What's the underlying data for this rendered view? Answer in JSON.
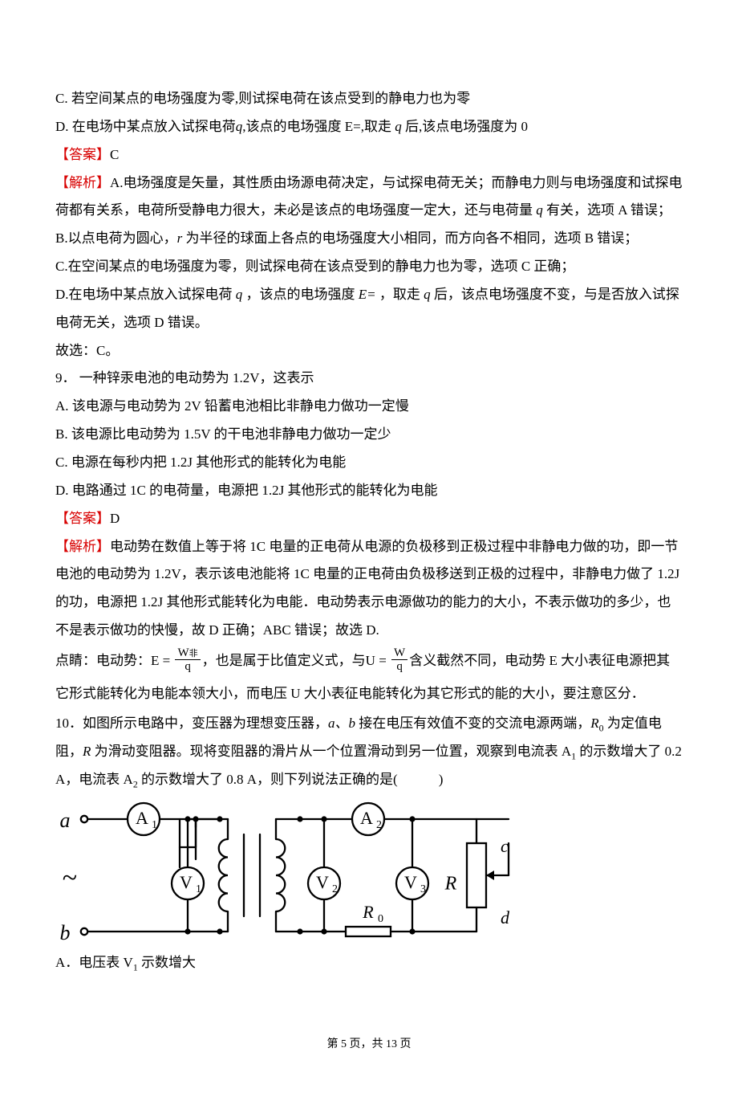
{
  "q8_tail": {
    "opt_c": "C.  若空间某点的电场强度为零,则试探电荷在该点受到的静电力也为零",
    "opt_d_pre": "D.  在电场中某点放入试探电荷",
    "opt_d_q1": "q",
    "opt_d_mid": ",该点的电场强度 E=,取走 ",
    "opt_d_q2": "q",
    "opt_d_post": " 后,该点电场强度为 0",
    "ans_label": "【答案】",
    "ans_val": "C",
    "ana_label": "【解析】",
    "ana_a_pre": "A.电场强度是矢量，其性质由场源电荷决定，与试探电荷无关；而静电力则与电场强度和试探电荷都有关系，电荷所受静电力很大，未必是该点的电场强度一定大，还与电荷量",
    "ana_a_q": " q ",
    "ana_a_post": "有关，选项 A 错误；",
    "ana_b_pre": "B.以点电荷为圆心，",
    "ana_b_r": "r ",
    "ana_b_post": "为半径的球面上各点的电场强度大小相同，而方向各不相同，选项 B 错误；",
    "ana_c": "C.在空间某点的电场强度为零，则试探电荷在该点受到的静电力也为零，选项 C 正确；",
    "ana_d_pre": "D.在电场中某点放入试探电荷 ",
    "ana_d_q1": "q ",
    "ana_d_mid1": "，该点的电场强度",
    "ana_d_E": " E= ",
    "ana_d_mid2": " ，取走",
    "ana_d_q2": " q ",
    "ana_d_post": "后，该点电场强度不变，与是否放入试探电荷无关，选项 D 错误。",
    "ana_end": "故选：C。"
  },
  "q9": {
    "stem": "9． 一种锌汞电池的电动势为 1.2V，这表示",
    "opt_a": "A.  该电源与电动势为 2V 铅蓄电池相比非静电力做功一定慢",
    "opt_b": "B.  该电源比电动势为 1.5V 的干电池非静电力做功一定少",
    "opt_c": "C.  电源在每秒内把 1.2J 其他形式的能转化为电能",
    "opt_d": "D.  电路通过 1C 的电荷量，电源把 1.2J 其他形式的能转化为电能",
    "ans_label": "【答案】",
    "ans_val": "D",
    "ana_label": "【解析】",
    "ana_1": "电动势在数值上等于将 1C 电量的正电荷从电源的负极移到正极过程中非静电力做的功，即一节电池的电动势为 1.2V，表示该电池能将 1C 电量的正电荷由负极移送到正极的过程中，非静电力做了 1.2J 的功，电源把 1.2J 其他形式能转化为电能．电动势表示电源做功的能力的大小，不表示做功的多少，也不是表示做功的快慢，故 D 正确；ABC 错误；故选 D.",
    "tip_pre": "点睛：电动势：",
    "tip_E": "E",
    "tip_eq": " = ",
    "frac1_num": "W",
    "frac1_num_sub": "非",
    "frac1_den": "q",
    "tip_mid1": "，也是属于比值定义式，与",
    "tip_U": "U",
    "tip_eq2": " = ",
    "frac2_num": "W",
    "frac2_den": "q",
    "tip_mid2": "含义截然不同，电动势 E 大小表征电源把其它形式能转化为电能本领大小，而电压 U 大小表征电能转化为其它形式的能的大小，要注意区分．"
  },
  "q10": {
    "stem_1": "10．如图所示电路中，变压器为理想变压器，",
    "stem_ab": "a、b ",
    "stem_2": "接在电压有效值不变的交流电源两端，",
    "stem_R0": "R",
    "stem_R0sub": "0",
    "stem_3": " 为定值电阻，",
    "stem_R": "R ",
    "stem_4": "为滑动变阻器。现将变阻器的滑片从一个位置滑动到另一位置，观察到电流表 A",
    "stem_A1sub": "1",
    "stem_5": " 的示数增大了 0.2 A，电流表 A",
    "stem_A2sub": "2",
    "stem_6": " 的示数增大了 0.8 A，则下列说法正确的是(　　　)",
    "opt_a_pre": "A．电压表 V",
    "opt_a_sub": "1",
    "opt_a_post": " 示数增大"
  },
  "circuit": {
    "labels": {
      "A1": "A",
      "A1sub": "1",
      "A2": "A",
      "A2sub": "2",
      "V1": "V",
      "V1sub": "1",
      "V2": "V",
      "V2sub": "2",
      "V3": "V",
      "V3sub": "3",
      "R0": "R",
      "R0sub": "0",
      "R": "R",
      "a": "a",
      "b": "b",
      "c": "c",
      "d": "d",
      "ac": "~"
    },
    "style": {
      "stroke": "#000000",
      "stroke_width": 2.3,
      "fill": "#ffffff",
      "font_family": "Times New Roman",
      "label_fontsize": 22,
      "sub_fontsize": 14,
      "terminal_font": 26,
      "meter_r": 20,
      "node_r": 3.6,
      "term_r": 4.2
    }
  },
  "footer": {
    "pre": "第 ",
    "cur": "5",
    "mid": " 页，共 ",
    "total": "13",
    "post": " 页"
  }
}
